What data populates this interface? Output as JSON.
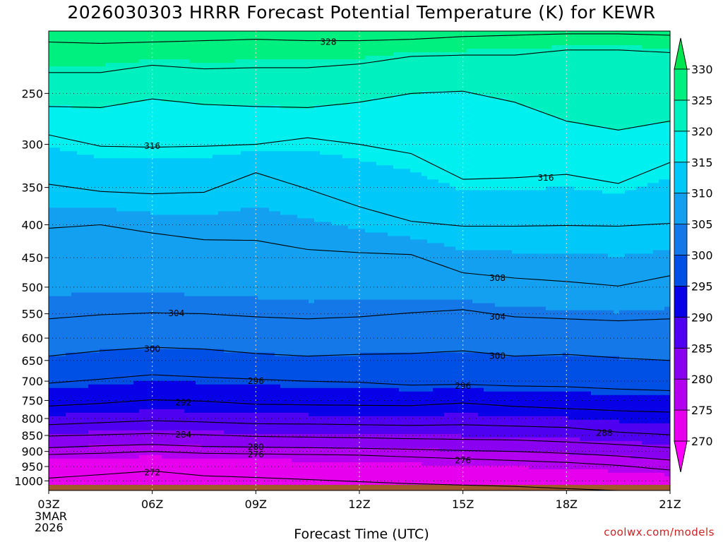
{
  "chart_data": {
    "type": "heatmap",
    "title": "2026030303 HRRR Forecast Potential Temperature (K) for KEWR",
    "xlabel": "Forecast Time (UTC)",
    "ylabel": "",
    "credit": "coolwx.com/models",
    "y_scale": "log-pressure",
    "y_direction": "pressure decreases upward",
    "ylim": [
      1035,
      200
    ],
    "x_range_hours": [
      0,
      18
    ],
    "x_ticks": [
      {
        "label": "03Z",
        "hour": 0,
        "sub": [
          "3MAR",
          "2026"
        ]
      },
      {
        "label": "06Z",
        "hour": 3
      },
      {
        "label": "09Z",
        "hour": 6
      },
      {
        "label": "12Z",
        "hour": 9
      },
      {
        "label": "15Z",
        "hour": 12
      },
      {
        "label": "18Z",
        "hour": 15
      },
      {
        "label": "21Z",
        "hour": 18
      }
    ],
    "y_ticks": [
      250,
      300,
      350,
      400,
      450,
      500,
      550,
      600,
      650,
      700,
      750,
      800,
      850,
      900,
      950,
      1000
    ],
    "grid": true,
    "colorbar": {
      "position": "right",
      "ticks": [
        270,
        275,
        280,
        285,
        290,
        295,
        300,
        305,
        310,
        315,
        320,
        325,
        330
      ],
      "colors": [
        "#ff00ff",
        "#e600ee",
        "#b400f0",
        "#8a00f0",
        "#5000f0",
        "#0800e6",
        "#0050e6",
        "#1478e8",
        "#14a0f0",
        "#00c8f8",
        "#00f0f0",
        "#00f0c0",
        "#00f080",
        "#00e650"
      ]
    },
    "ground_color": "#a05a2c",
    "columns_hours": [
      0,
      1.5,
      3,
      4.5,
      6,
      7.5,
      9,
      10.5,
      12,
      13.5,
      15,
      16.5,
      18
    ],
    "contour_levels": [
      272,
      276,
      280,
      284,
      288,
      292,
      296,
      300,
      304,
      308,
      312,
      316,
      320,
      324,
      328
    ],
    "isentropes": [
      {
        "level": 328,
        "p": [
          208,
          209,
          208,
          207,
          206,
          207,
          207,
          206,
          204,
          203,
          202,
          202,
          203
        ]
      },
      {
        "level": 324,
        "p": [
          232,
          232,
          226,
          229,
          228,
          228,
          225,
          219,
          218,
          218,
          214,
          214,
          216
        ]
      },
      {
        "level": 320,
        "p": [
          262,
          263,
          255,
          260,
          262,
          263,
          258,
          250,
          248,
          258,
          276,
          285,
          276
        ]
      },
      {
        "level": 316,
        "p": [
          290,
          302,
          303,
          302,
          300,
          293,
          300,
          310,
          340,
          338,
          334,
          345,
          320
        ]
      },
      {
        "level": 312,
        "p": [
          346,
          355,
          358,
          356,
          332,
          352,
          375,
          395,
          402,
          402,
          401,
          402,
          398
        ]
      },
      {
        "level": 308,
        "p": [
          405,
          400,
          412,
          422,
          423,
          437,
          442,
          445,
          475,
          484,
          490,
          498,
          480
        ]
      },
      {
        "level": 304,
        "p": [
          560,
          552,
          548,
          550,
          556,
          560,
          556,
          548,
          542,
          556,
          560,
          564,
          560
        ]
      },
      {
        "level": 300,
        "p": [
          640,
          628,
          620,
          624,
          634,
          640,
          636,
          634,
          628,
          640,
          636,
          644,
          650
        ]
      },
      {
        "level": 296,
        "p": [
          705,
          695,
          684,
          690,
          695,
          700,
          703,
          710,
          708,
          712,
          714,
          720,
          724
        ]
      },
      {
        "level": 292,
        "p": [
          765,
          758,
          748,
          752,
          760,
          762,
          763,
          764,
          757,
          766,
          772,
          778,
          782
        ]
      },
      {
        "level": 288,
        "p": [
          818,
          812,
          806,
          810,
          815,
          816,
          818,
          820,
          818,
          822,
          826,
          840,
          848
        ]
      },
      {
        "level": 284,
        "p": [
          852,
          848,
          844,
          848,
          853,
          855,
          857,
          860,
          862,
          864,
          870,
          878,
          888
        ]
      },
      {
        "level": 280,
        "p": [
          888,
          882,
          878,
          884,
          886,
          888,
          890,
          893,
          897,
          900,
          906,
          915,
          928
        ]
      },
      {
        "level": 276,
        "p": [
          910,
          906,
          900,
          906,
          908,
          910,
          912,
          918,
          924,
          930,
          936,
          946,
          962
        ]
      },
      {
        "level": 272,
        "p": [
          990,
          978,
          965,
          982,
          988,
          995,
          1003,
          1010,
          1015,
          1020,
          1028,
          1035,
          1035
        ]
      }
    ],
    "contour_labels": [
      {
        "text": "328",
        "hour": 8.1,
        "p": 208
      },
      {
        "text": "316",
        "hour": 3.0,
        "p": 302
      },
      {
        "text": "316",
        "hour": 14.4,
        "p": 338
      },
      {
        "text": "308",
        "hour": 13.0,
        "p": 484
      },
      {
        "text": "304",
        "hour": 3.7,
        "p": 549
      },
      {
        "text": "304",
        "hour": 13.0,
        "p": 556
      },
      {
        "text": "300",
        "hour": 3.0,
        "p": 624
      },
      {
        "text": "300",
        "hour": 13.0,
        "p": 640
      },
      {
        "text": "296",
        "hour": 6.0,
        "p": 700
      },
      {
        "text": "296",
        "hour": 12.0,
        "p": 712
      },
      {
        "text": "292",
        "hour": 3.9,
        "p": 756
      },
      {
        "text": "288",
        "hour": 16.1,
        "p": 842
      },
      {
        "text": "284",
        "hour": 3.9,
        "p": 848
      },
      {
        "text": "280",
        "hour": 6.0,
        "p": 886
      },
      {
        "text": "276",
        "hour": 6.0,
        "p": 910
      },
      {
        "text": "276",
        "hour": 12.0,
        "p": 930
      },
      {
        "text": "272",
        "hour": 3.0,
        "p": 970
      }
    ]
  }
}
